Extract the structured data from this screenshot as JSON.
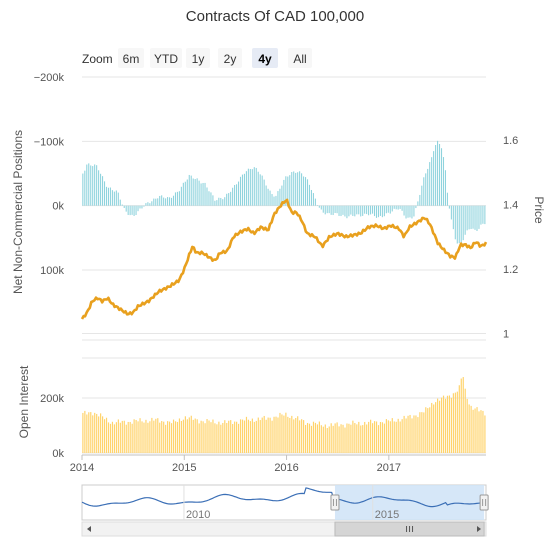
{
  "title": "Contracts Of CAD 100,000",
  "zoom": {
    "label": "Zoom",
    "buttons": [
      "6m",
      "YTD",
      "1y",
      "2y",
      "4y",
      "All"
    ],
    "selected": "4y"
  },
  "colors": {
    "positions": "#8fd3dd",
    "price": "#e8a01e",
    "open_interest": "#ffd36b",
    "navigator_line": "#3b6fb6",
    "navigator_mask": "#cfe3f7",
    "grid": "#e6e6e6",
    "text": "#333333",
    "axis_text": "#555555"
  },
  "chart_data": [
    {
      "type": "bar",
      "name": "net-positions-panel",
      "ylabel": "Net Non-Commercial Positions",
      "ylim": [
        -200000,
        200000
      ],
      "y_reversed": true,
      "y_ticks": [
        -200000,
        -100000,
        0,
        100000
      ],
      "y_tick_labels": [
        "−200k",
        "−100k",
        "0k",
        "100k"
      ],
      "x_range": [
        2014.0,
        2017.95
      ],
      "series": [
        {
          "name": "Net Non-Commercial Positions",
          "x_start": 2014.0,
          "x_end": 2017.95,
          "anchors": [
            [
              2014.0,
              -48000
            ],
            [
              2014.05,
              -65000
            ],
            [
              2014.15,
              -60000
            ],
            [
              2014.25,
              -30000
            ],
            [
              2014.35,
              -20000
            ],
            [
              2014.42,
              8000
            ],
            [
              2014.5,
              16000
            ],
            [
              2014.55,
              10000
            ],
            [
              2014.65,
              -5000
            ],
            [
              2014.75,
              -15000
            ],
            [
              2014.85,
              -10000
            ],
            [
              2014.95,
              -25000
            ],
            [
              2015.05,
              -45000
            ],
            [
              2015.12,
              -42000
            ],
            [
              2015.2,
              -35000
            ],
            [
              2015.3,
              -8000
            ],
            [
              2015.4,
              -15000
            ],
            [
              2015.5,
              -30000
            ],
            [
              2015.6,
              -55000
            ],
            [
              2015.68,
              -60000
            ],
            [
              2015.75,
              -48000
            ],
            [
              2015.85,
              -20000
            ],
            [
              2015.9,
              -15000
            ],
            [
              2016.0,
              -45000
            ],
            [
              2016.08,
              -55000
            ],
            [
              2016.15,
              -50000
            ],
            [
              2016.22,
              -35000
            ],
            [
              2016.3,
              -5000
            ],
            [
              2016.35,
              10000
            ],
            [
              2016.42,
              15000
            ],
            [
              2016.5,
              12000
            ],
            [
              2016.6,
              18000
            ],
            [
              2016.7,
              15000
            ],
            [
              2016.8,
              12000
            ],
            [
              2016.9,
              20000
            ],
            [
              2017.0,
              10000
            ],
            [
              2017.1,
              5000
            ],
            [
              2017.18,
              20000
            ],
            [
              2017.25,
              15000
            ],
            [
              2017.3,
              -15000
            ],
            [
              2017.35,
              -45000
            ],
            [
              2017.42,
              -75000
            ],
            [
              2017.45,
              -95000
            ],
            [
              2017.48,
              -100000
            ],
            [
              2017.52,
              -90000
            ],
            [
              2017.55,
              -60000
            ],
            [
              2017.58,
              -10000
            ],
            [
              2017.62,
              30000
            ],
            [
              2017.66,
              55000
            ],
            [
              2017.7,
              60000
            ],
            [
              2017.75,
              45000
            ],
            [
              2017.8,
              35000
            ],
            [
              2017.85,
              40000
            ],
            [
              2017.9,
              30000
            ],
            [
              2017.95,
              25000
            ]
          ]
        }
      ]
    },
    {
      "type": "line",
      "name": "price-panel",
      "ylabel": "Price",
      "ylim": [
        1.0,
        1.6
      ],
      "y_ticks": [
        1.0,
        1.2,
        1.4,
        1.6
      ],
      "y_tick_labels": [
        "1",
        "1.2",
        "1.4",
        "1.6"
      ],
      "x_range": [
        2014.0,
        2017.95
      ],
      "series": [
        {
          "name": "Price",
          "anchors": [
            [
              2014.0,
              1.045
            ],
            [
              2014.05,
              1.065
            ],
            [
              2014.1,
              1.1
            ],
            [
              2014.15,
              1.11
            ],
            [
              2014.2,
              1.1
            ],
            [
              2014.25,
              1.11
            ],
            [
              2014.3,
              1.09
            ],
            [
              2014.35,
              1.08
            ],
            [
              2014.45,
              1.06
            ],
            [
              2014.5,
              1.065
            ],
            [
              2014.55,
              1.085
            ],
            [
              2014.65,
              1.1
            ],
            [
              2014.75,
              1.13
            ],
            [
              2014.85,
              1.145
            ],
            [
              2014.95,
              1.165
            ],
            [
              2015.0,
              1.2
            ],
            [
              2015.05,
              1.245
            ],
            [
              2015.08,
              1.27
            ],
            [
              2015.12,
              1.25
            ],
            [
              2015.18,
              1.25
            ],
            [
              2015.25,
              1.235
            ],
            [
              2015.3,
              1.225
            ],
            [
              2015.35,
              1.25
            ],
            [
              2015.42,
              1.255
            ],
            [
              2015.48,
              1.3
            ],
            [
              2015.55,
              1.315
            ],
            [
              2015.62,
              1.325
            ],
            [
              2015.68,
              1.31
            ],
            [
              2015.75,
              1.33
            ],
            [
              2015.82,
              1.32
            ],
            [
              2015.88,
              1.37
            ],
            [
              2015.95,
              1.4
            ],
            [
              2016.0,
              1.415
            ],
            [
              2016.05,
              1.375
            ],
            [
              2016.1,
              1.375
            ],
            [
              2016.15,
              1.35
            ],
            [
              2016.2,
              1.31
            ],
            [
              2016.28,
              1.3
            ],
            [
              2016.35,
              1.27
            ],
            [
              2016.42,
              1.3
            ],
            [
              2016.5,
              1.31
            ],
            [
              2016.58,
              1.3
            ],
            [
              2016.65,
              1.305
            ],
            [
              2016.72,
              1.31
            ],
            [
              2016.8,
              1.33
            ],
            [
              2016.88,
              1.335
            ],
            [
              2016.95,
              1.325
            ],
            [
              2017.02,
              1.335
            ],
            [
              2017.1,
              1.325
            ],
            [
              2017.15,
              1.3
            ],
            [
              2017.2,
              1.33
            ],
            [
              2017.28,
              1.345
            ],
            [
              2017.35,
              1.36
            ],
            [
              2017.4,
              1.34
            ],
            [
              2017.48,
              1.28
            ],
            [
              2017.55,
              1.255
            ],
            [
              2017.6,
              1.24
            ],
            [
              2017.65,
              1.235
            ],
            [
              2017.7,
              1.275
            ],
            [
              2017.75,
              1.275
            ],
            [
              2017.8,
              1.265
            ],
            [
              2017.85,
              1.285
            ],
            [
              2017.9,
              1.27
            ],
            [
              2017.95,
              1.28
            ]
          ]
        }
      ]
    },
    {
      "type": "bar",
      "name": "open-interest-panel",
      "ylabel": "Open Interest",
      "ylim": [
        0,
        300000
      ],
      "y_ticks": [
        0,
        200000
      ],
      "y_tick_labels": [
        "0k",
        "200k"
      ],
      "x_range": [
        2014.0,
        2017.95
      ],
      "x_ticks": [
        2014,
        2015,
        2016,
        2017
      ],
      "x_tick_labels": [
        "2014",
        "2015",
        "2016",
        "2017"
      ],
      "series": [
        {
          "name": "Open Interest",
          "anchors": [
            [
              2014.0,
              140000
            ],
            [
              2014.1,
              150000
            ],
            [
              2014.2,
              130000
            ],
            [
              2014.3,
              110000
            ],
            [
              2014.5,
              115000
            ],
            [
              2014.7,
              120000
            ],
            [
              2014.9,
              110000
            ],
            [
              2015.0,
              130000
            ],
            [
              2015.2,
              115000
            ],
            [
              2015.4,
              110000
            ],
            [
              2015.6,
              120000
            ],
            [
              2015.8,
              125000
            ],
            [
              2016.0,
              140000
            ],
            [
              2016.2,
              110000
            ],
            [
              2016.4,
              100000
            ],
            [
              2016.6,
              105000
            ],
            [
              2016.8,
              110000
            ],
            [
              2017.0,
              115000
            ],
            [
              2017.2,
              130000
            ],
            [
              2017.35,
              150000
            ],
            [
              2017.45,
              190000
            ],
            [
              2017.55,
              200000
            ],
            [
              2017.65,
              220000
            ],
            [
              2017.7,
              240000
            ],
            [
              2017.72,
              300000
            ],
            [
              2017.75,
              220000
            ],
            [
              2017.8,
              170000
            ],
            [
              2017.9,
              150000
            ],
            [
              2017.95,
              145000
            ]
          ]
        }
      ]
    },
    {
      "type": "line",
      "name": "navigator",
      "x_ticks": [
        2010,
        2015
      ],
      "x_tick_labels": [
        "2010",
        "2015"
      ],
      "x_range": [
        2007.3,
        2018.0
      ],
      "selection": [
        2014.0,
        2017.95
      ]
    }
  ]
}
